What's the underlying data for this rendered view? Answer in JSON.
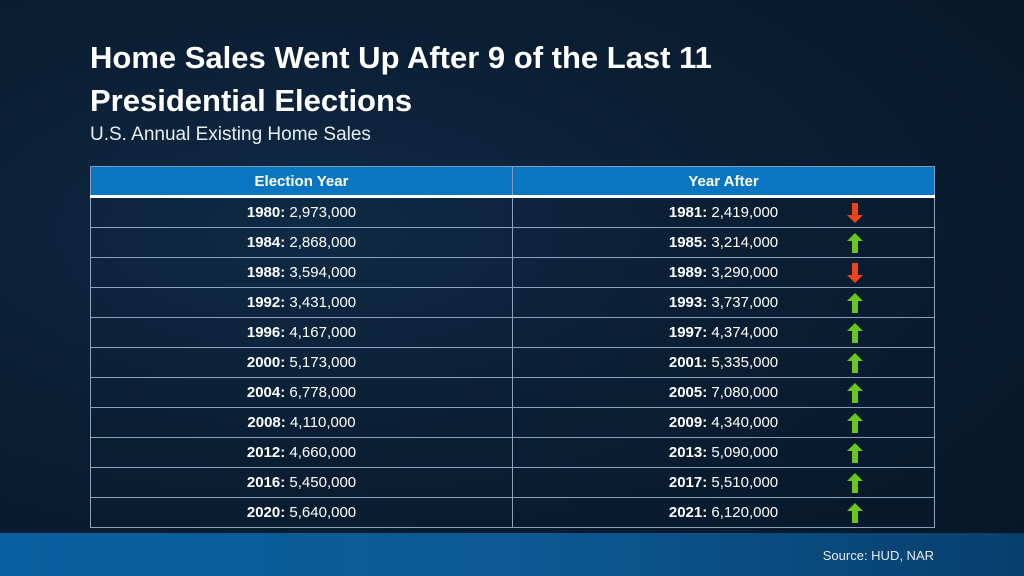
{
  "title_line1": "Home Sales Went Up After 9 of the Last 11",
  "title_line2": "Presidential Elections",
  "subtitle": "U.S. Annual Existing Home Sales",
  "table": {
    "headers": [
      "Election Year",
      "Year After"
    ],
    "rows": [
      {
        "year": "1980:",
        "sales": "2,973,000",
        "after_year": "1981:",
        "after_sales": "2,419,000",
        "trend": "down"
      },
      {
        "year": "1984:",
        "sales": "2,868,000",
        "after_year": "1985:",
        "after_sales": "3,214,000",
        "trend": "up"
      },
      {
        "year": "1988:",
        "sales": "3,594,000",
        "after_year": "1989:",
        "after_sales": "3,290,000",
        "trend": "down"
      },
      {
        "year": "1992:",
        "sales": "3,431,000",
        "after_year": "1993:",
        "after_sales": "3,737,000",
        "trend": "up"
      },
      {
        "year": "1996:",
        "sales": "4,167,000",
        "after_year": "1997:",
        "after_sales": "4,374,000",
        "trend": "up"
      },
      {
        "year": "2000:",
        "sales": "5,173,000",
        "after_year": "2001:",
        "after_sales": "5,335,000",
        "trend": "up"
      },
      {
        "year": "2004:",
        "sales": "6,778,000",
        "after_year": "2005:",
        "after_sales": "7,080,000",
        "trend": "up"
      },
      {
        "year": "2008:",
        "sales": "4,110,000",
        "after_year": "2009:",
        "after_sales": "4,340,000",
        "trend": "up"
      },
      {
        "year": "2012:",
        "sales": "4,660,000",
        "after_year": "2013:",
        "after_sales": "5,090,000",
        "trend": "up"
      },
      {
        "year": "2016:",
        "sales": "5,450,000",
        "after_year": "2017:",
        "after_sales": "5,510,000",
        "trend": "up"
      },
      {
        "year": "2020:",
        "sales": "5,640,000",
        "after_year": "2021:",
        "after_sales": "6,120,000",
        "trend": "up"
      }
    ]
  },
  "colors": {
    "up": "#6cc51f",
    "down": "#f0431a",
    "header": "#0a76c2"
  },
  "icons": {
    "up": "arrow-up-icon",
    "down": "arrow-down-icon"
  },
  "source": "Source: HUD, NAR"
}
